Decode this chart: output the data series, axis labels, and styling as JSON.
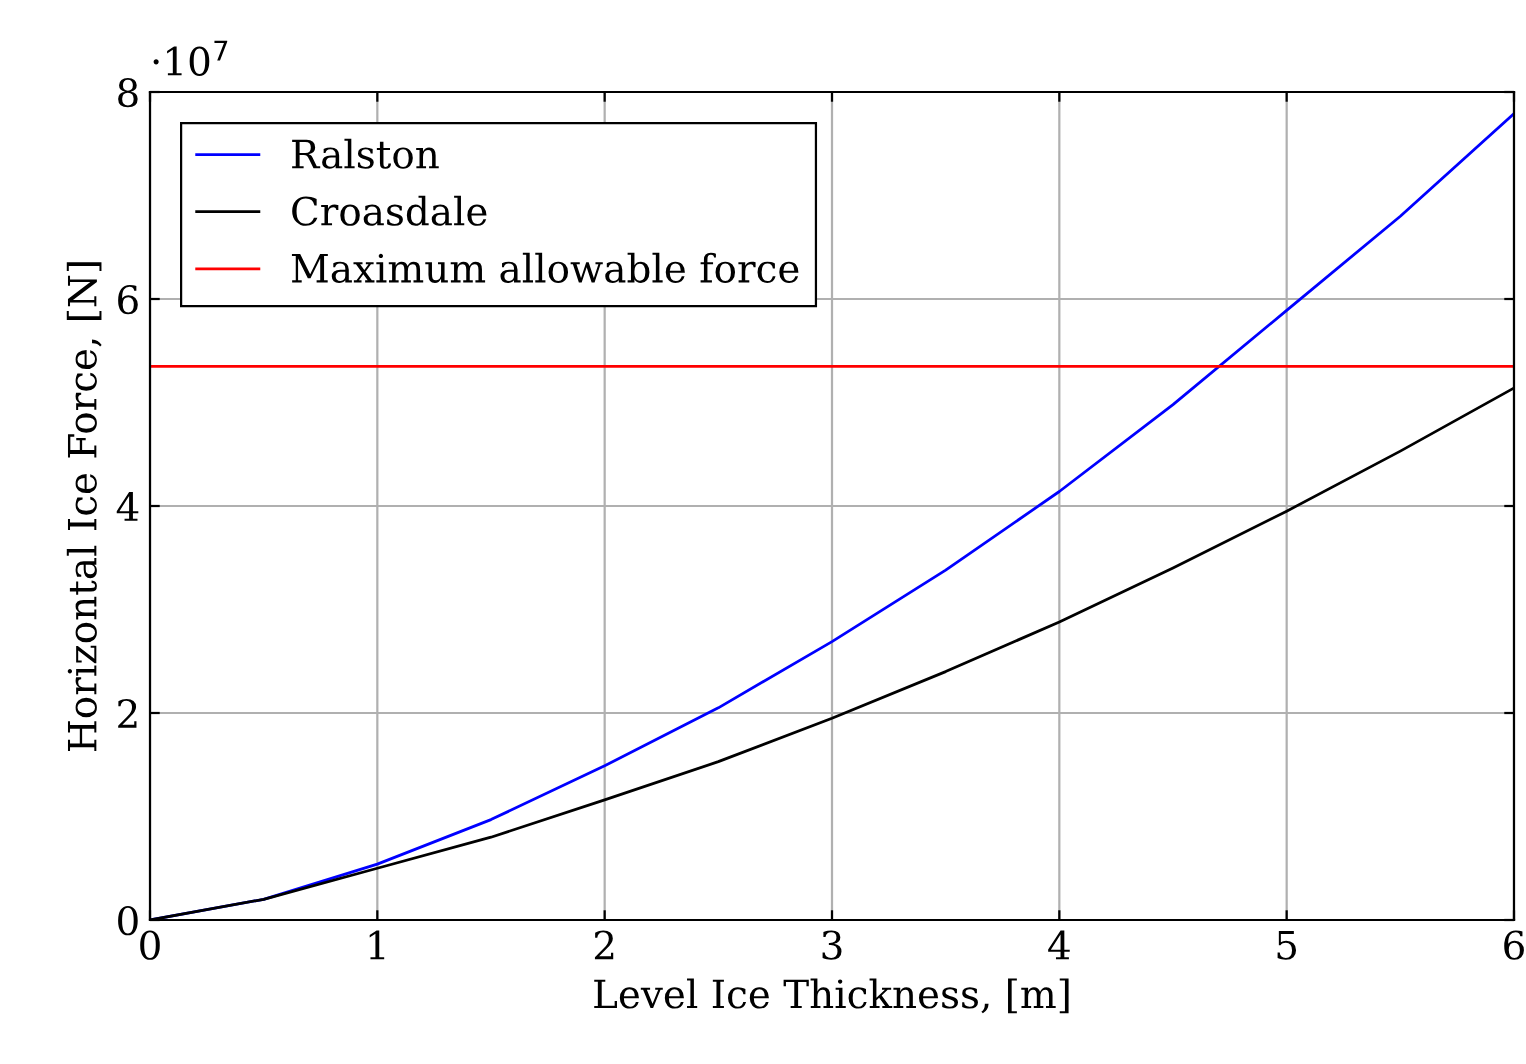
{
  "chart_data": {
    "type": "line",
    "xlabel": "Level Ice Thickness, [m]",
    "ylabel": "Horizontal Ice Force, [N]",
    "annotations": [
      "·10$^{7}$"
    ],
    "x": [
      0,
      0.5,
      1,
      1.5,
      2,
      2.5,
      3,
      3.5,
      4,
      4.5,
      5,
      5.5,
      6
    ],
    "series": [
      {
        "name": "Ralston",
        "color": "#0000ff",
        "values": [
          0,
          0.2,
          0.54,
          0.97,
          1.49,
          2.05,
          2.69,
          3.38,
          4.14,
          4.98,
          5.89,
          6.8,
          7.79
        ]
      },
      {
        "name": "Croasdale",
        "color": "#000000",
        "values": [
          0,
          0.2,
          0.5,
          0.8,
          1.16,
          1.53,
          1.95,
          2.4,
          2.88,
          3.4,
          3.95,
          4.53,
          5.14
        ]
      }
    ],
    "ref_lines": [
      {
        "axis": "y",
        "value": 5.35,
        "label": "Maximum allowable force",
        "color": "#ff0000"
      }
    ],
    "xlim": [
      0,
      6
    ],
    "ylim": [
      0,
      8
    ],
    "xticks": [
      0,
      1,
      2,
      3,
      4,
      5,
      6
    ],
    "yticks": [
      0,
      2,
      4,
      6,
      8
    ],
    "grid": true,
    "legend": "top left",
    "marker": "none",
    "line_style": "solid"
  }
}
